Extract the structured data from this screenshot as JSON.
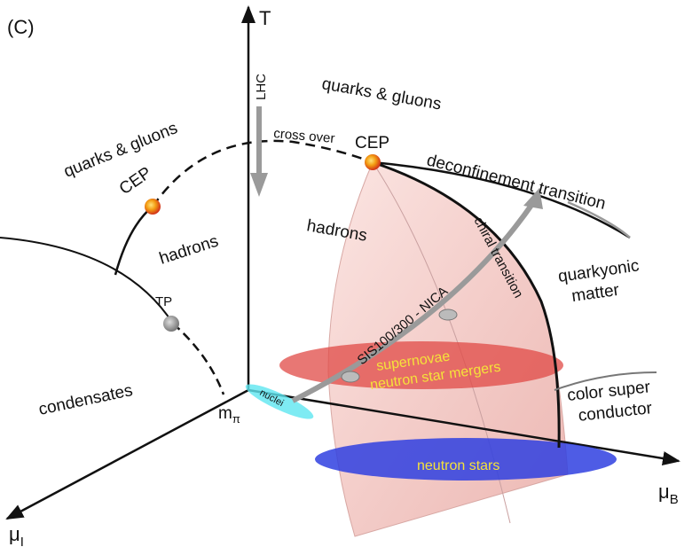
{
  "panel_label": "(C)",
  "axes": {
    "T": "T",
    "mu_B": {
      "symbol": "μ",
      "subscript": "B"
    },
    "mu_I": {
      "symbol": "μ",
      "subscript": "I"
    },
    "m_pi": {
      "symbol": "m",
      "subscript": "π"
    }
  },
  "labels": {
    "lhc": "LHC",
    "qg_left": "quarks & gluons",
    "qg_right": "quarks & gluons",
    "cross_over": "cross over",
    "cep_left": "CEP",
    "cep_right": "CEP",
    "deconfinement": "deconfinement transition",
    "chiral": "chiral transition",
    "hadrons_left": "hadrons",
    "hadrons_right": "hadrons",
    "tp": "TP",
    "quarkyonic": [
      "quarkyonic",
      "matter"
    ],
    "sis": "SIS100/300 - NICA",
    "supernovae": [
      "supernovae",
      "neutron star mergers"
    ],
    "condensates": "condensates",
    "nuclei": "nuclei",
    "color_sc": [
      "color super",
      "conductor"
    ],
    "neutron_stars": "neutron stars"
  }
}
